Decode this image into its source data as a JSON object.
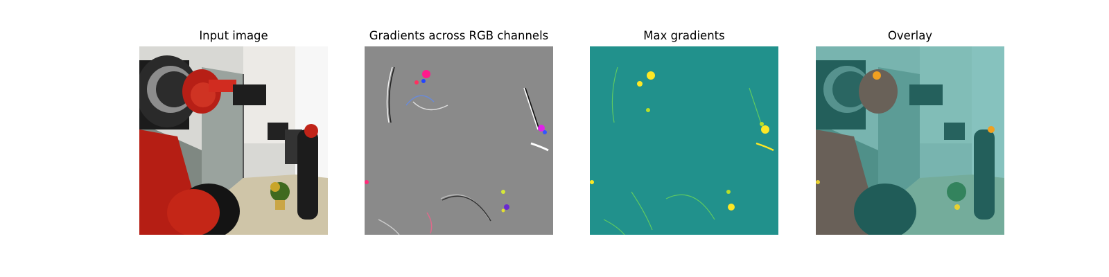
{
  "panels": [
    {
      "title": "Input image"
    },
    {
      "title": "Gradients across RGB channels"
    },
    {
      "title": "Max gradients"
    },
    {
      "title": "Overlay"
    }
  ],
  "colors": {
    "background": "#ffffff",
    "gradient_gray": "#8a8a8a",
    "heatmap_teal": "#21918c",
    "heatmap_yellow": "#fde725",
    "robot_red": "#b41e14",
    "overlay_tint": "#2a9890"
  }
}
